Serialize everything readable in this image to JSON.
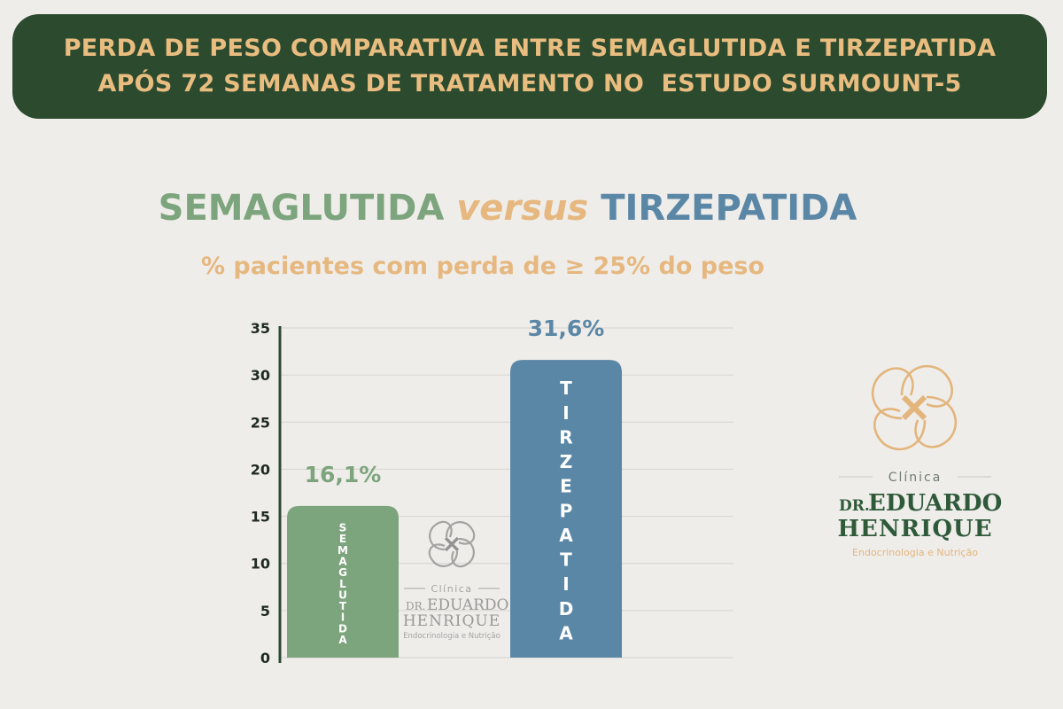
{
  "banner": {
    "line1": "PERDA DE PESO COMPARATIVA ENTRE SEMAGLUTIDA E TIRZEPATIDA",
    "line2": "APÓS 72 SEMANAS DE TRATAMENTO NO  ESTUDO SURMOUNT-5"
  },
  "headline": {
    "left": "SEMAGLUTIDA",
    "middle": "versus",
    "right": "TIRZEPATIDA"
  },
  "subtitle": "% pacientes com perda de ≥ 25% do peso",
  "colors": {
    "banner_bg": "#2c4a2e",
    "banner_text": "#e9bd80",
    "semaglutida": "#7ca47d",
    "tirzepatida": "#5b87a6",
    "accent": "#e6b880",
    "background": "#efedea"
  },
  "chart_data": {
    "type": "bar",
    "title": "% pacientes com perda de ≥ 25% do peso",
    "categories": [
      "SEMAGLUTIDA",
      "TIRZEPATIDA"
    ],
    "values": [
      16.1,
      31.6
    ],
    "value_labels": [
      "16,1%",
      "31,6%"
    ],
    "bar_colors": [
      "#7ca47d",
      "#5b87a6"
    ],
    "yticks": [
      0,
      5,
      10,
      15,
      20,
      25,
      30,
      35
    ],
    "ylim": [
      0,
      35
    ],
    "grid": true,
    "legend": "none"
  },
  "logo": {
    "clinic": "Clínica",
    "prefix": "DR.",
    "name1": "EDUARDO",
    "name2": "HENRIQUE",
    "specialty": "Endocrinologia e Nutrição",
    "icon": "clover-logo-icon"
  }
}
